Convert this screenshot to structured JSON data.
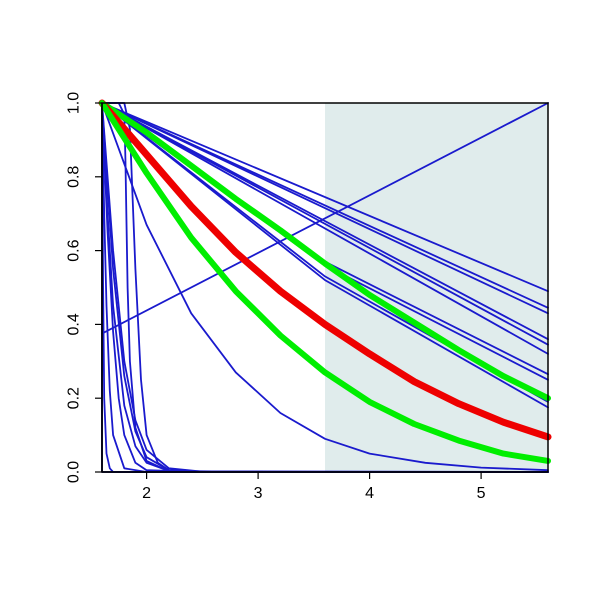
{
  "chart_data": {
    "type": "line",
    "title": "",
    "xlabel": "",
    "ylabel": "",
    "xlim": [
      1.6,
      5.6
    ],
    "ylim": [
      0.0,
      1.0
    ],
    "x_ticks": [
      2,
      3,
      4,
      5
    ],
    "x_tick_labels": [
      "2",
      "3",
      "4",
      "5"
    ],
    "y_ticks": [
      0.0,
      0.2,
      0.4,
      0.6,
      0.8,
      1.0
    ],
    "y_tick_labels": [
      "0.0",
      "0.2",
      "0.4",
      "0.6",
      "0.8",
      "1.0"
    ],
    "grid": false,
    "legend": "none",
    "shaded_region": {
      "x_from": 3.6,
      "x_to": 5.6,
      "color": "#e0ecec"
    },
    "series": [
      {
        "color": "#1a1acd",
        "width": 1.8,
        "x": [
          1.6,
          5.6
        ],
        "y": [
          0.375,
          1.0
        ]
      },
      {
        "color": "#1a1acd",
        "width": 1.8,
        "x": [
          1.6,
          5.6
        ],
        "y": [
          1.0,
          0.49
        ]
      },
      {
        "color": "#1a1acd",
        "width": 1.8,
        "x": [
          1.6,
          5.6
        ],
        "y": [
          1.0,
          0.445
        ]
      },
      {
        "color": "#1a1acd",
        "width": 1.8,
        "x": [
          1.6,
          5.6
        ],
        "y": [
          1.0,
          0.43
        ]
      },
      {
        "color": "#1a1acd",
        "width": 1.8,
        "x": [
          1.6,
          5.6
        ],
        "y": [
          1.0,
          0.36
        ]
      },
      {
        "color": "#1a1acd",
        "width": 1.8,
        "x": [
          1.6,
          5.6
        ],
        "y": [
          1.0,
          0.345
        ]
      },
      {
        "color": "#1a1acd",
        "width": 1.8,
        "x": [
          1.6,
          5.6
        ],
        "y": [
          1.0,
          0.32
        ]
      },
      {
        "color": "#1a1acd",
        "width": 1.8,
        "x": [
          1.6,
          3.6,
          5.6
        ],
        "y": [
          1.0,
          0.57,
          0.265
        ]
      },
      {
        "color": "#1a1acd",
        "width": 1.8,
        "x": [
          1.6,
          3.6,
          5.6
        ],
        "y": [
          1.0,
          0.56,
          0.25
        ]
      },
      {
        "color": "#1a1acd",
        "width": 1.8,
        "x": [
          1.6,
          3.6,
          5.6
        ],
        "y": [
          1.0,
          0.53,
          0.19
        ]
      },
      {
        "color": "#1a1acd",
        "width": 1.8,
        "x": [
          1.6,
          3.6,
          5.6
        ],
        "y": [
          1.0,
          0.52,
          0.175
        ]
      },
      {
        "color": "#1a1acd",
        "width": 1.8,
        "x": [
          1.6,
          2.0,
          2.4,
          2.8,
          3.2,
          3.6,
          4.0,
          4.5,
          5.0,
          5.6
        ],
        "y": [
          1.0,
          0.67,
          0.43,
          0.27,
          0.16,
          0.09,
          0.05,
          0.025,
          0.012,
          0.005
        ]
      },
      {
        "color": "#1a1acd",
        "width": 1.8,
        "x": [
          1.6,
          1.7,
          1.8,
          1.9,
          2.0,
          2.2,
          2.5,
          3.0,
          5.6
        ],
        "y": [
          1.0,
          0.6,
          0.3,
          0.14,
          0.06,
          0.01,
          0.001,
          0.0,
          0.0
        ]
      },
      {
        "color": "#1a1acd",
        "width": 1.8,
        "x": [
          1.6,
          1.7,
          1.8,
          1.9,
          2.0,
          2.2,
          2.5,
          3.0,
          5.6
        ],
        "y": [
          1.0,
          0.55,
          0.26,
          0.11,
          0.04,
          0.005,
          0.0,
          0.0,
          0.0
        ]
      },
      {
        "color": "#1a1acd",
        "width": 1.8,
        "x": [
          1.6,
          1.65,
          1.7,
          1.8,
          1.9,
          2.0,
          2.2,
          3.0,
          5.6
        ],
        "y": [
          1.0,
          0.7,
          0.45,
          0.18,
          0.07,
          0.025,
          0.003,
          0.0,
          0.0
        ]
      },
      {
        "color": "#1a1acd",
        "width": 1.8,
        "x": [
          1.6,
          1.65,
          1.7,
          1.75,
          1.8,
          1.9,
          2.0,
          2.5,
          5.6
        ],
        "y": [
          1.0,
          0.65,
          0.38,
          0.2,
          0.1,
          0.025,
          0.005,
          0.0,
          0.0
        ]
      },
      {
        "color": "#1a1acd",
        "width": 1.8,
        "x": [
          1.6,
          1.62,
          1.64,
          1.67,
          1.7,
          1.8,
          2.0,
          5.6
        ],
        "y": [
          1.0,
          0.7,
          0.45,
          0.22,
          0.1,
          0.01,
          0.0,
          0.0
        ]
      },
      {
        "color": "#1a1acd",
        "width": 1.8,
        "x": [
          1.6,
          1.61,
          1.62,
          1.64,
          1.67,
          1.7,
          1.8,
          5.6
        ],
        "y": [
          1.0,
          0.5,
          0.2,
          0.05,
          0.01,
          0.0,
          0.0,
          0.0
        ]
      },
      {
        "color": "#1a1acd",
        "width": 1.8,
        "x": [
          1.6,
          1.6,
          1.7,
          5.6
        ],
        "y": [
          1.0,
          0.0,
          0.0,
          0.0
        ]
      },
      {
        "color": "#1a1acd",
        "width": 1.8,
        "x": [
          1.6,
          1.75,
          1.8,
          1.81,
          1.83,
          1.85,
          1.9,
          2.0,
          2.2,
          5.6
        ],
        "y": [
          1.0,
          1.0,
          0.97,
          0.85,
          0.5,
          0.3,
          0.12,
          0.03,
          0.002,
          0.0
        ]
      },
      {
        "color": "#1a1acd",
        "width": 1.8,
        "x": [
          1.6,
          1.8,
          1.85,
          1.9,
          1.95,
          2.0,
          2.1,
          2.2,
          2.4,
          5.6
        ],
        "y": [
          1.0,
          1.0,
          0.93,
          0.55,
          0.25,
          0.1,
          0.025,
          0.005,
          0.0,
          0.0
        ]
      },
      {
        "color": "#00ee00",
        "width": 6,
        "x": [
          1.6,
          2.0,
          2.4,
          2.8,
          3.2,
          3.6,
          4.0,
          4.4,
          4.8,
          5.2,
          5.6
        ],
        "y": [
          1.0,
          0.92,
          0.83,
          0.74,
          0.655,
          0.565,
          0.48,
          0.405,
          0.33,
          0.26,
          0.2
        ]
      },
      {
        "color": "#ee0000",
        "width": 7,
        "x": [
          1.6,
          2.0,
          2.4,
          2.8,
          3.2,
          3.6,
          4.0,
          4.4,
          4.8,
          5.2,
          5.6
        ],
        "y": [
          1.0,
          0.86,
          0.72,
          0.595,
          0.49,
          0.4,
          0.32,
          0.245,
          0.185,
          0.135,
          0.095
        ]
      },
      {
        "color": "#00ee00",
        "width": 6,
        "x": [
          1.6,
          2.0,
          2.4,
          2.8,
          3.2,
          3.6,
          4.0,
          4.4,
          4.8,
          5.2,
          5.6
        ],
        "y": [
          1.0,
          0.81,
          0.635,
          0.49,
          0.37,
          0.27,
          0.19,
          0.13,
          0.085,
          0.05,
          0.03
        ]
      }
    ]
  }
}
